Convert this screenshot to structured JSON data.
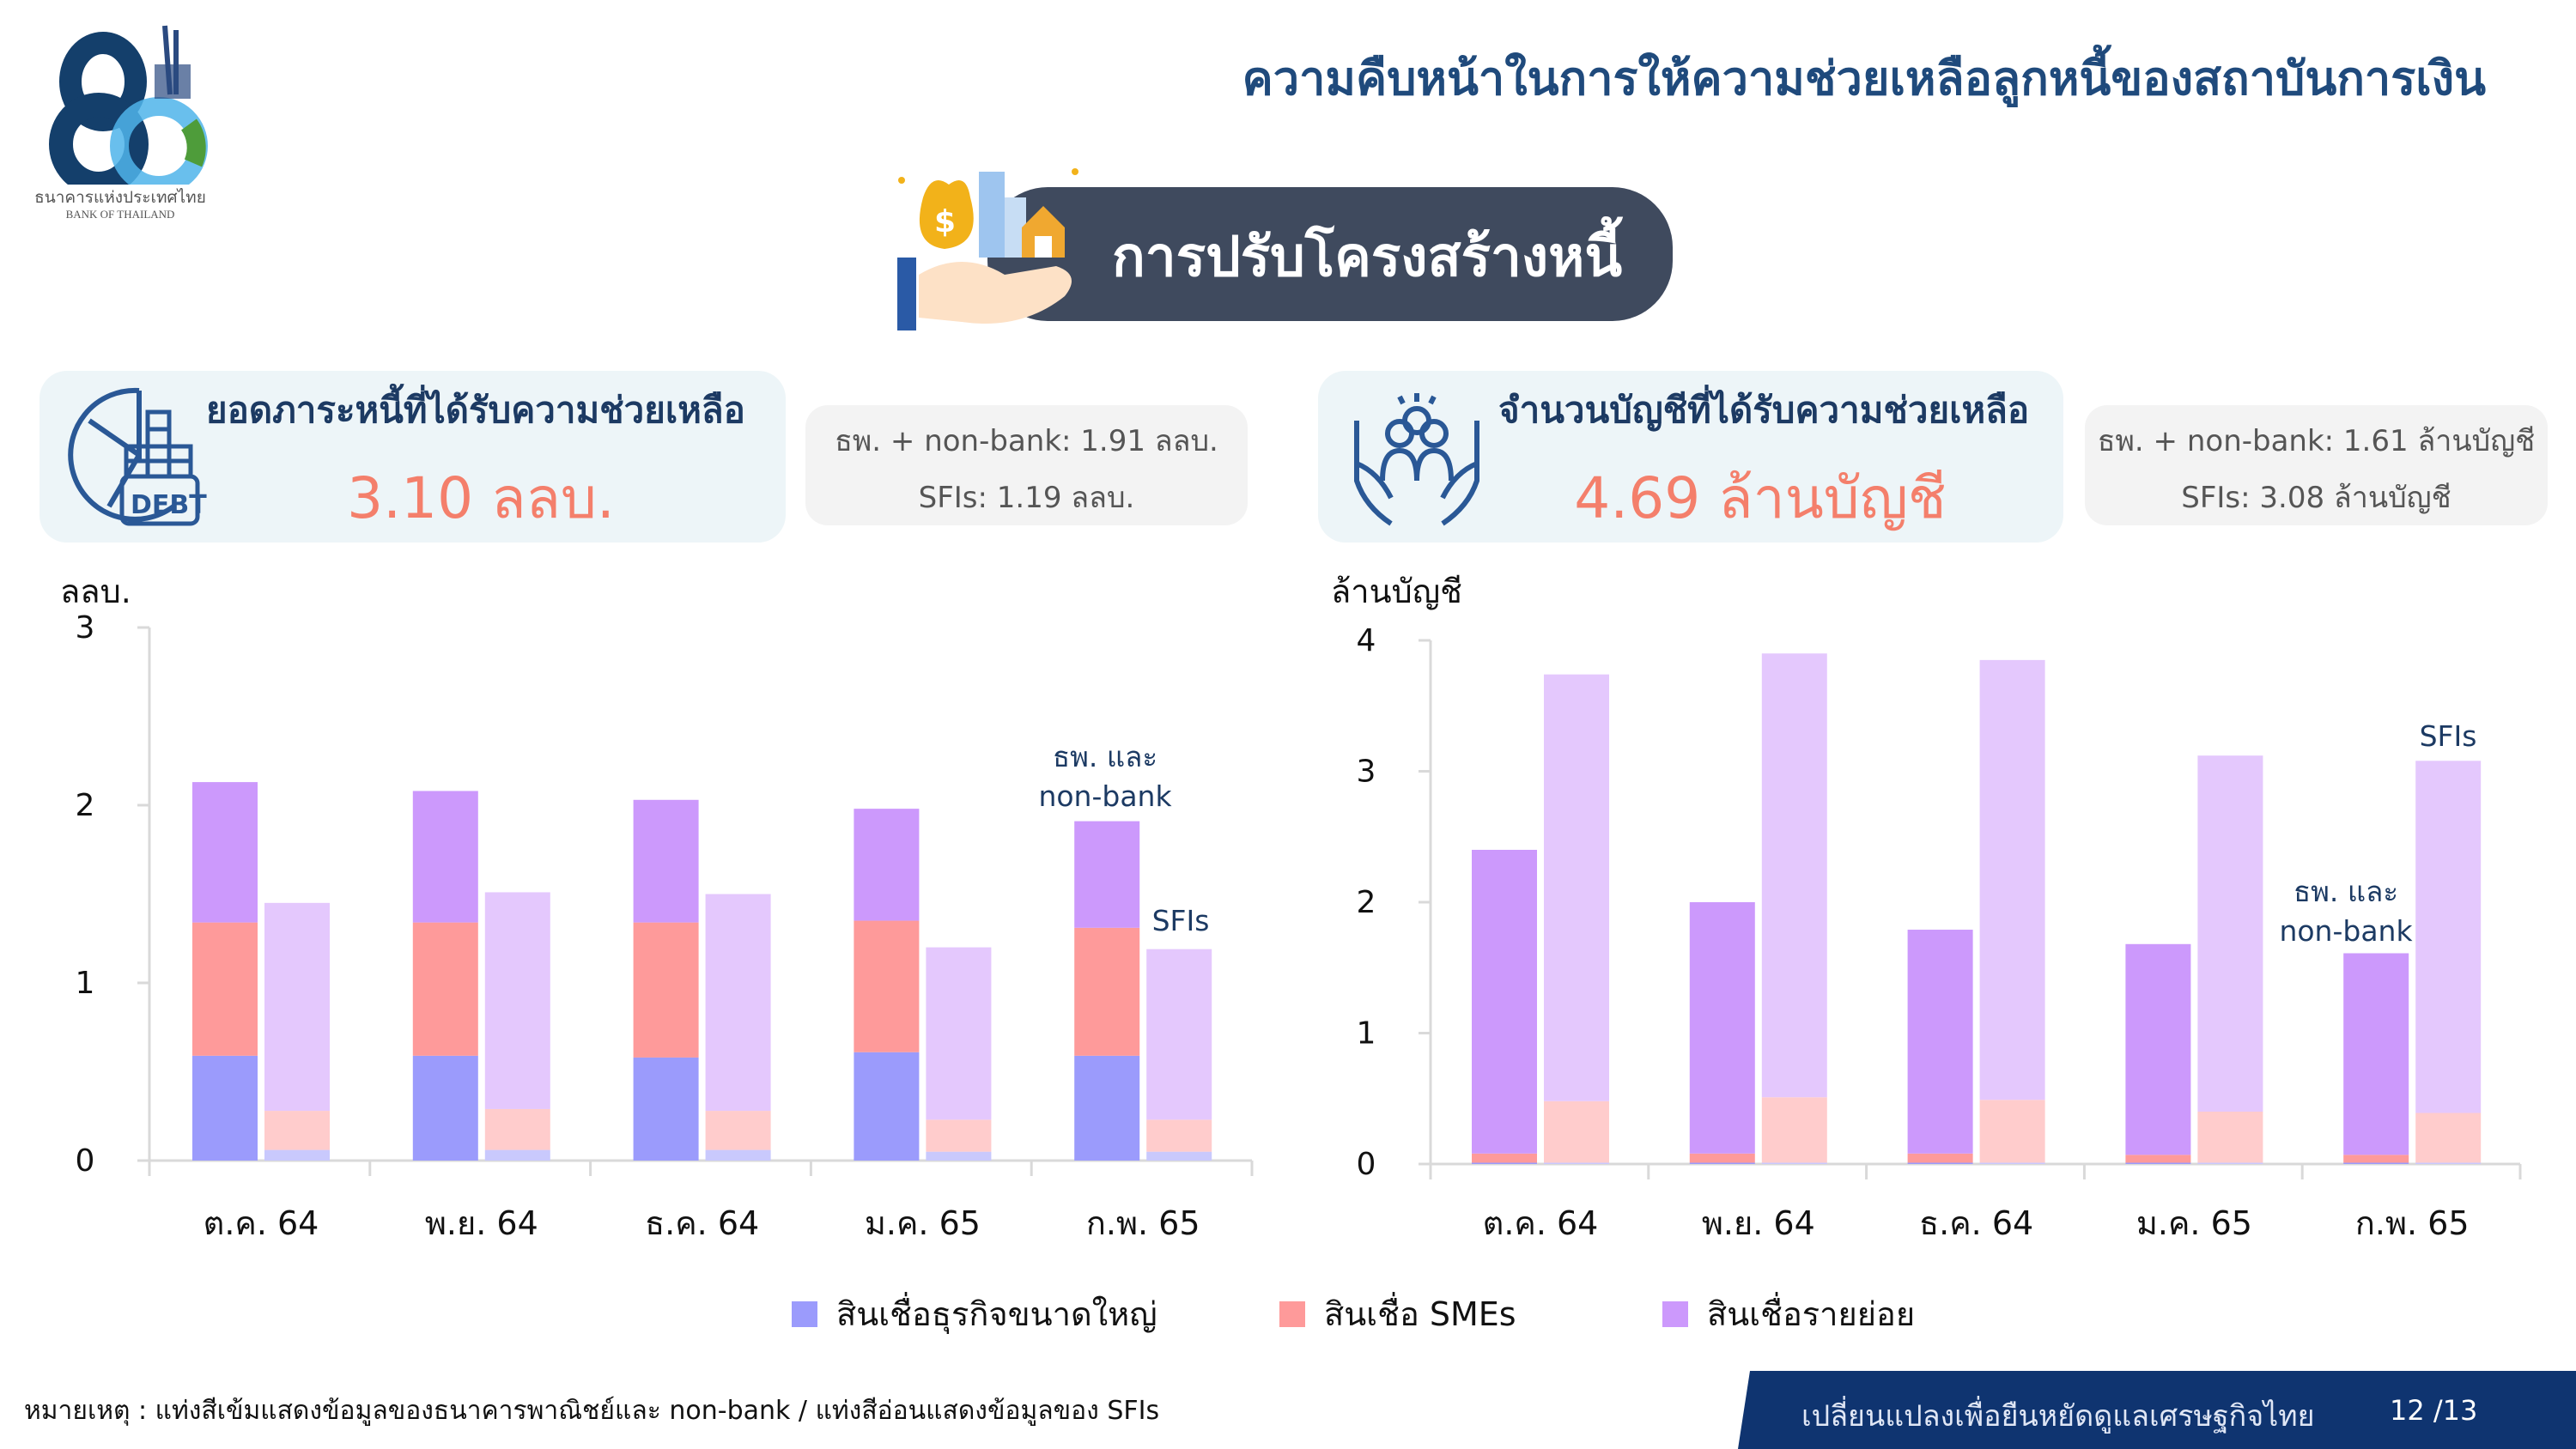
{
  "header": {
    "title": "ความคืบหน้าในการให้ความช่วยเหลือลูกหนี้ของสถาบันการเงิน",
    "logo_text_th": "ธนาคารแห่งประเทศไทย",
    "logo_text_en": "BANK OF THAILAND",
    "banner": "การปรับโครงสร้างหนี้"
  },
  "debt_card": {
    "icon": "debt-chart-icon",
    "icon_label": "DEBT",
    "title": "ยอดภาระหนี้ที่ได้รับความช่วยเหลือ",
    "value": "3.10 ลลบ.",
    "breakdown": [
      "ธพ. + non-bank: 1.91 ลลบ.",
      "SFIs: 1.19 ลลบ."
    ]
  },
  "accounts_card": {
    "icon": "hands-people-icon",
    "title": "จำนวนบัญชีที่ได้รับความช่วยเหลือ",
    "value": "4.69 ล้านบัญชี",
    "breakdown": [
      "ธพ. + non-bank: 1.61 ล้านบัญชี",
      "SFIs: 3.08 ล้านบัญชี"
    ]
  },
  "colors": {
    "large_dark": "#9b9bfc",
    "sme_dark": "#fe9a9a",
    "retail_dark": "#cc99fc",
    "large_light": "#c9c9fd",
    "sme_light": "#ffcccc",
    "retail_light": "#e4c8fd",
    "accent": "#f47f6b",
    "navy": "#1c3a63"
  },
  "chart_data": [
    {
      "type": "bar",
      "stacked": true,
      "ylabel": "ลลบ.",
      "ylim": [
        0,
        3
      ],
      "yticks": [
        0,
        1,
        2,
        3
      ],
      "categories": [
        "ต.ค. 64",
        "พ.ย. 64",
        "ธ.ค. 64",
        "ม.ค. 65",
        "ก.พ. 65"
      ],
      "annotations": {
        "dark": [
          "ธพ. และ",
          "non-bank"
        ],
        "light": "SFIs"
      },
      "groups": {
        "dark": {
          "large": [
            0.59,
            0.59,
            0.58,
            0.61,
            0.59
          ],
          "sme": [
            0.75,
            0.75,
            0.76,
            0.74,
            0.72
          ],
          "retail": [
            0.79,
            0.74,
            0.69,
            0.63,
            0.6
          ]
        },
        "light": {
          "large": [
            0.06,
            0.06,
            0.06,
            0.05,
            0.05
          ],
          "sme": [
            0.22,
            0.23,
            0.22,
            0.18,
            0.18
          ],
          "retail": [
            1.17,
            1.22,
            1.22,
            0.97,
            0.96
          ]
        }
      },
      "grid": false
    },
    {
      "type": "bar",
      "stacked": true,
      "ylabel": "ล้านบัญชี",
      "ylim": [
        0,
        4
      ],
      "yticks": [
        0,
        1,
        2,
        3,
        4
      ],
      "categories": [
        "ต.ค. 64",
        "พ.ย. 64",
        "ธ.ค. 64",
        "ม.ค. 65",
        "ก.พ. 65"
      ],
      "annotations": {
        "dark": [
          "ธพ. และ",
          "non-bank"
        ],
        "light": "SFIs"
      },
      "groups": {
        "dark": {
          "large": [
            0.01,
            0.01,
            0.01,
            0.01,
            0.01
          ],
          "sme": [
            0.07,
            0.07,
            0.07,
            0.06,
            0.06
          ],
          "retail": [
            2.32,
            1.92,
            1.71,
            1.61,
            1.54
          ]
        },
        "light": {
          "large": [
            0.01,
            0.01,
            0.01,
            0.01,
            0.01
          ],
          "sme": [
            0.47,
            0.5,
            0.48,
            0.39,
            0.38
          ],
          "retail": [
            3.26,
            3.39,
            3.36,
            2.72,
            2.69
          ]
        }
      },
      "grid": false
    }
  ],
  "legend": [
    "สินเชื่อธุรกิจขนาดใหญ่",
    "สินเชื่อ SMEs",
    "สินเชื่อรายย่อย"
  ],
  "footnote": "หมายเหตุ : แท่งสีเข้มแสดงข้อมูลของธนาคารพาณิชย์และ non-bank / แท่งสีอ่อนแสดงข้อมูลของ SFIs",
  "footer": {
    "slogan": "เปลี่ยนแปลงเพื่อยืนหยัดดูแลเศรษฐกิจไทย",
    "page": "12 /13"
  }
}
